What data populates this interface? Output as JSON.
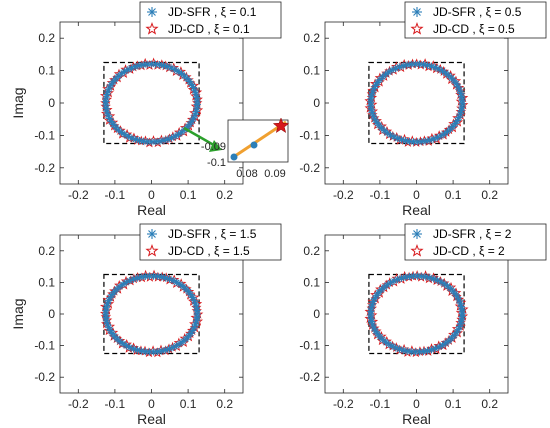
{
  "chart_data": [
    {
      "type": "scatter",
      "panel": "top-left",
      "xlabel": "Real",
      "ylabel": "Imag",
      "xlim": [
        -0.25,
        0.25
      ],
      "ylim": [
        -0.25,
        0.25
      ],
      "xticks": [
        "-0.2",
        "-0.1",
        "0",
        "0.1",
        "0.2"
      ],
      "yticks": [
        "0.2",
        "0.1",
        "0",
        "-0.1",
        "-0.2"
      ],
      "legend_position": "top-right",
      "legend": [
        "JD-SFR , ξ = 0.1",
        "JD-CD    , ξ = 0.1"
      ],
      "eigen_ellipse": {
        "semi_axis_real": 0.125,
        "semi_axis_imag": 0.12
      },
      "dashed_box": {
        "x": [
          -0.13,
          0.13
        ],
        "y": [
          -0.125,
          0.125
        ]
      },
      "inset": {
        "xticks": [
          "0.08",
          "0.09"
        ],
        "yticks": [
          "-0.09",
          "-0.1"
        ]
      }
    },
    {
      "type": "scatter",
      "panel": "top-right",
      "xlabel": "Real",
      "ylabel": "",
      "xlim": [
        -0.25,
        0.25
      ],
      "ylim": [
        -0.25,
        0.25
      ],
      "xticks": [
        "-0.2",
        "-0.1",
        "0",
        "0.1",
        "0.2"
      ],
      "yticks": [
        "0.2",
        "0.1",
        "0",
        "-0.1",
        "-0.2"
      ],
      "legend_position": "top-right",
      "legend": [
        "JD-SFR , ξ = 0.5",
        "JD-CD    , ξ = 0.5"
      ],
      "eigen_ellipse": {
        "semi_axis_real": 0.125,
        "semi_axis_imag": 0.12
      },
      "dashed_box": {
        "x": [
          -0.13,
          0.13
        ],
        "y": [
          -0.125,
          0.125
        ]
      }
    },
    {
      "type": "scatter",
      "panel": "bottom-left",
      "xlabel": "Real",
      "ylabel": "Imag",
      "xlim": [
        -0.25,
        0.25
      ],
      "ylim": [
        -0.25,
        0.25
      ],
      "xticks": [
        "-0.2",
        "-0.1",
        "0",
        "0.1",
        "0.2"
      ],
      "yticks": [
        "0.2",
        "0.1",
        "0",
        "-0.1",
        "-0.2"
      ],
      "legend_position": "top-right",
      "legend": [
        "JD-SFR , ξ = 1.5",
        "JD-CD    , ξ = 1.5"
      ],
      "eigen_ellipse": {
        "semi_axis_real": 0.125,
        "semi_axis_imag": 0.12
      },
      "dashed_box": {
        "x": [
          -0.13,
          0.13
        ],
        "y": [
          -0.125,
          0.125
        ]
      }
    },
    {
      "type": "scatter",
      "panel": "bottom-right",
      "xlabel": "Real",
      "ylabel": "",
      "xlim": [
        -0.25,
        0.25
      ],
      "ylim": [
        -0.25,
        0.25
      ],
      "xticks": [
        "-0.2",
        "-0.1",
        "0",
        "0.1",
        "0.2"
      ],
      "yticks": [
        "0.2",
        "0.1",
        "0",
        "-0.1",
        "-0.2"
      ],
      "legend_position": "top-right",
      "legend": [
        "JD-SFR , ξ = 2",
        "JD-CD    , ξ = 2"
      ],
      "eigen_ellipse": {
        "semi_axis_real": 0.125,
        "semi_axis_imag": 0.12
      },
      "dashed_box": {
        "x": [
          -0.13,
          0.13
        ],
        "y": [
          -0.125,
          0.125
        ]
      }
    }
  ],
  "colors": {
    "sfr_marker": "#2c7fb8",
    "cd_marker": "#d7191c",
    "dashed_box": "#000000",
    "inset_line": "#f0a030",
    "arrow": "#2ca02c"
  }
}
